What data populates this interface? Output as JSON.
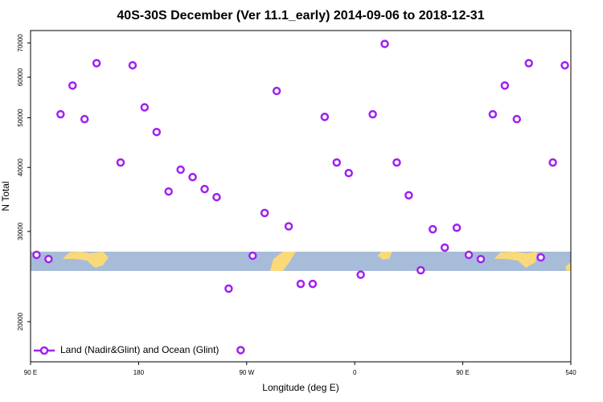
{
  "chart_data": {
    "type": "scatter",
    "title": "40S-30S December (Ver 11.1_early)   2014-09-06 to 2018-12-31",
    "xlabel": "Longitude (deg E)",
    "ylabel": "N Total",
    "log_y": true,
    "legend": "bottom-left",
    "xlim": [
      90,
      540
    ],
    "xticks": [
      {
        "value": 90,
        "label": "90 E"
      },
      180,
      {
        "value": 270,
        "label": "90 W"
      },
      {
        "value": 360,
        "label": "0"
      },
      {
        "value": 450,
        "label": "90 E"
      },
      540
    ],
    "ylim": [
      16700,
      74000
    ],
    "yticks": [
      20000,
      30000,
      40000,
      50000,
      60000,
      70000
    ],
    "series": [
      {
        "name": "Land (Nadir&Glint) and Ocean (Glint)",
        "color": "#a020f0",
        "x": [
          95,
          105,
          115,
          125,
          135,
          145,
          165,
          175,
          185,
          195,
          205,
          215,
          225,
          235,
          245,
          255,
          265,
          275,
          285,
          295,
          305,
          315,
          325,
          335,
          345,
          355,
          365,
          375,
          385,
          395,
          405,
          415,
          425,
          435,
          445,
          455,
          465,
          475,
          485,
          495,
          505,
          515,
          525,
          535
        ],
        "values": [
          27000,
          26500,
          50800,
          57800,
          49700,
          63900,
          40900,
          63300,
          52400,
          46900,
          35900,
          39600,
          38300,
          36300,
          35000,
          23200,
          17600,
          26900,
          32600,
          56400,
          30700,
          23700,
          23700,
          50200,
          40900,
          39000,
          24700,
          50800,
          69700,
          40900,
          35300,
          25200,
          30300,
          27900,
          30500,
          27000,
          26500,
          50800,
          57800,
          49700,
          63900,
          26700,
          40900,
          63300
        ]
      }
    ]
  }
}
